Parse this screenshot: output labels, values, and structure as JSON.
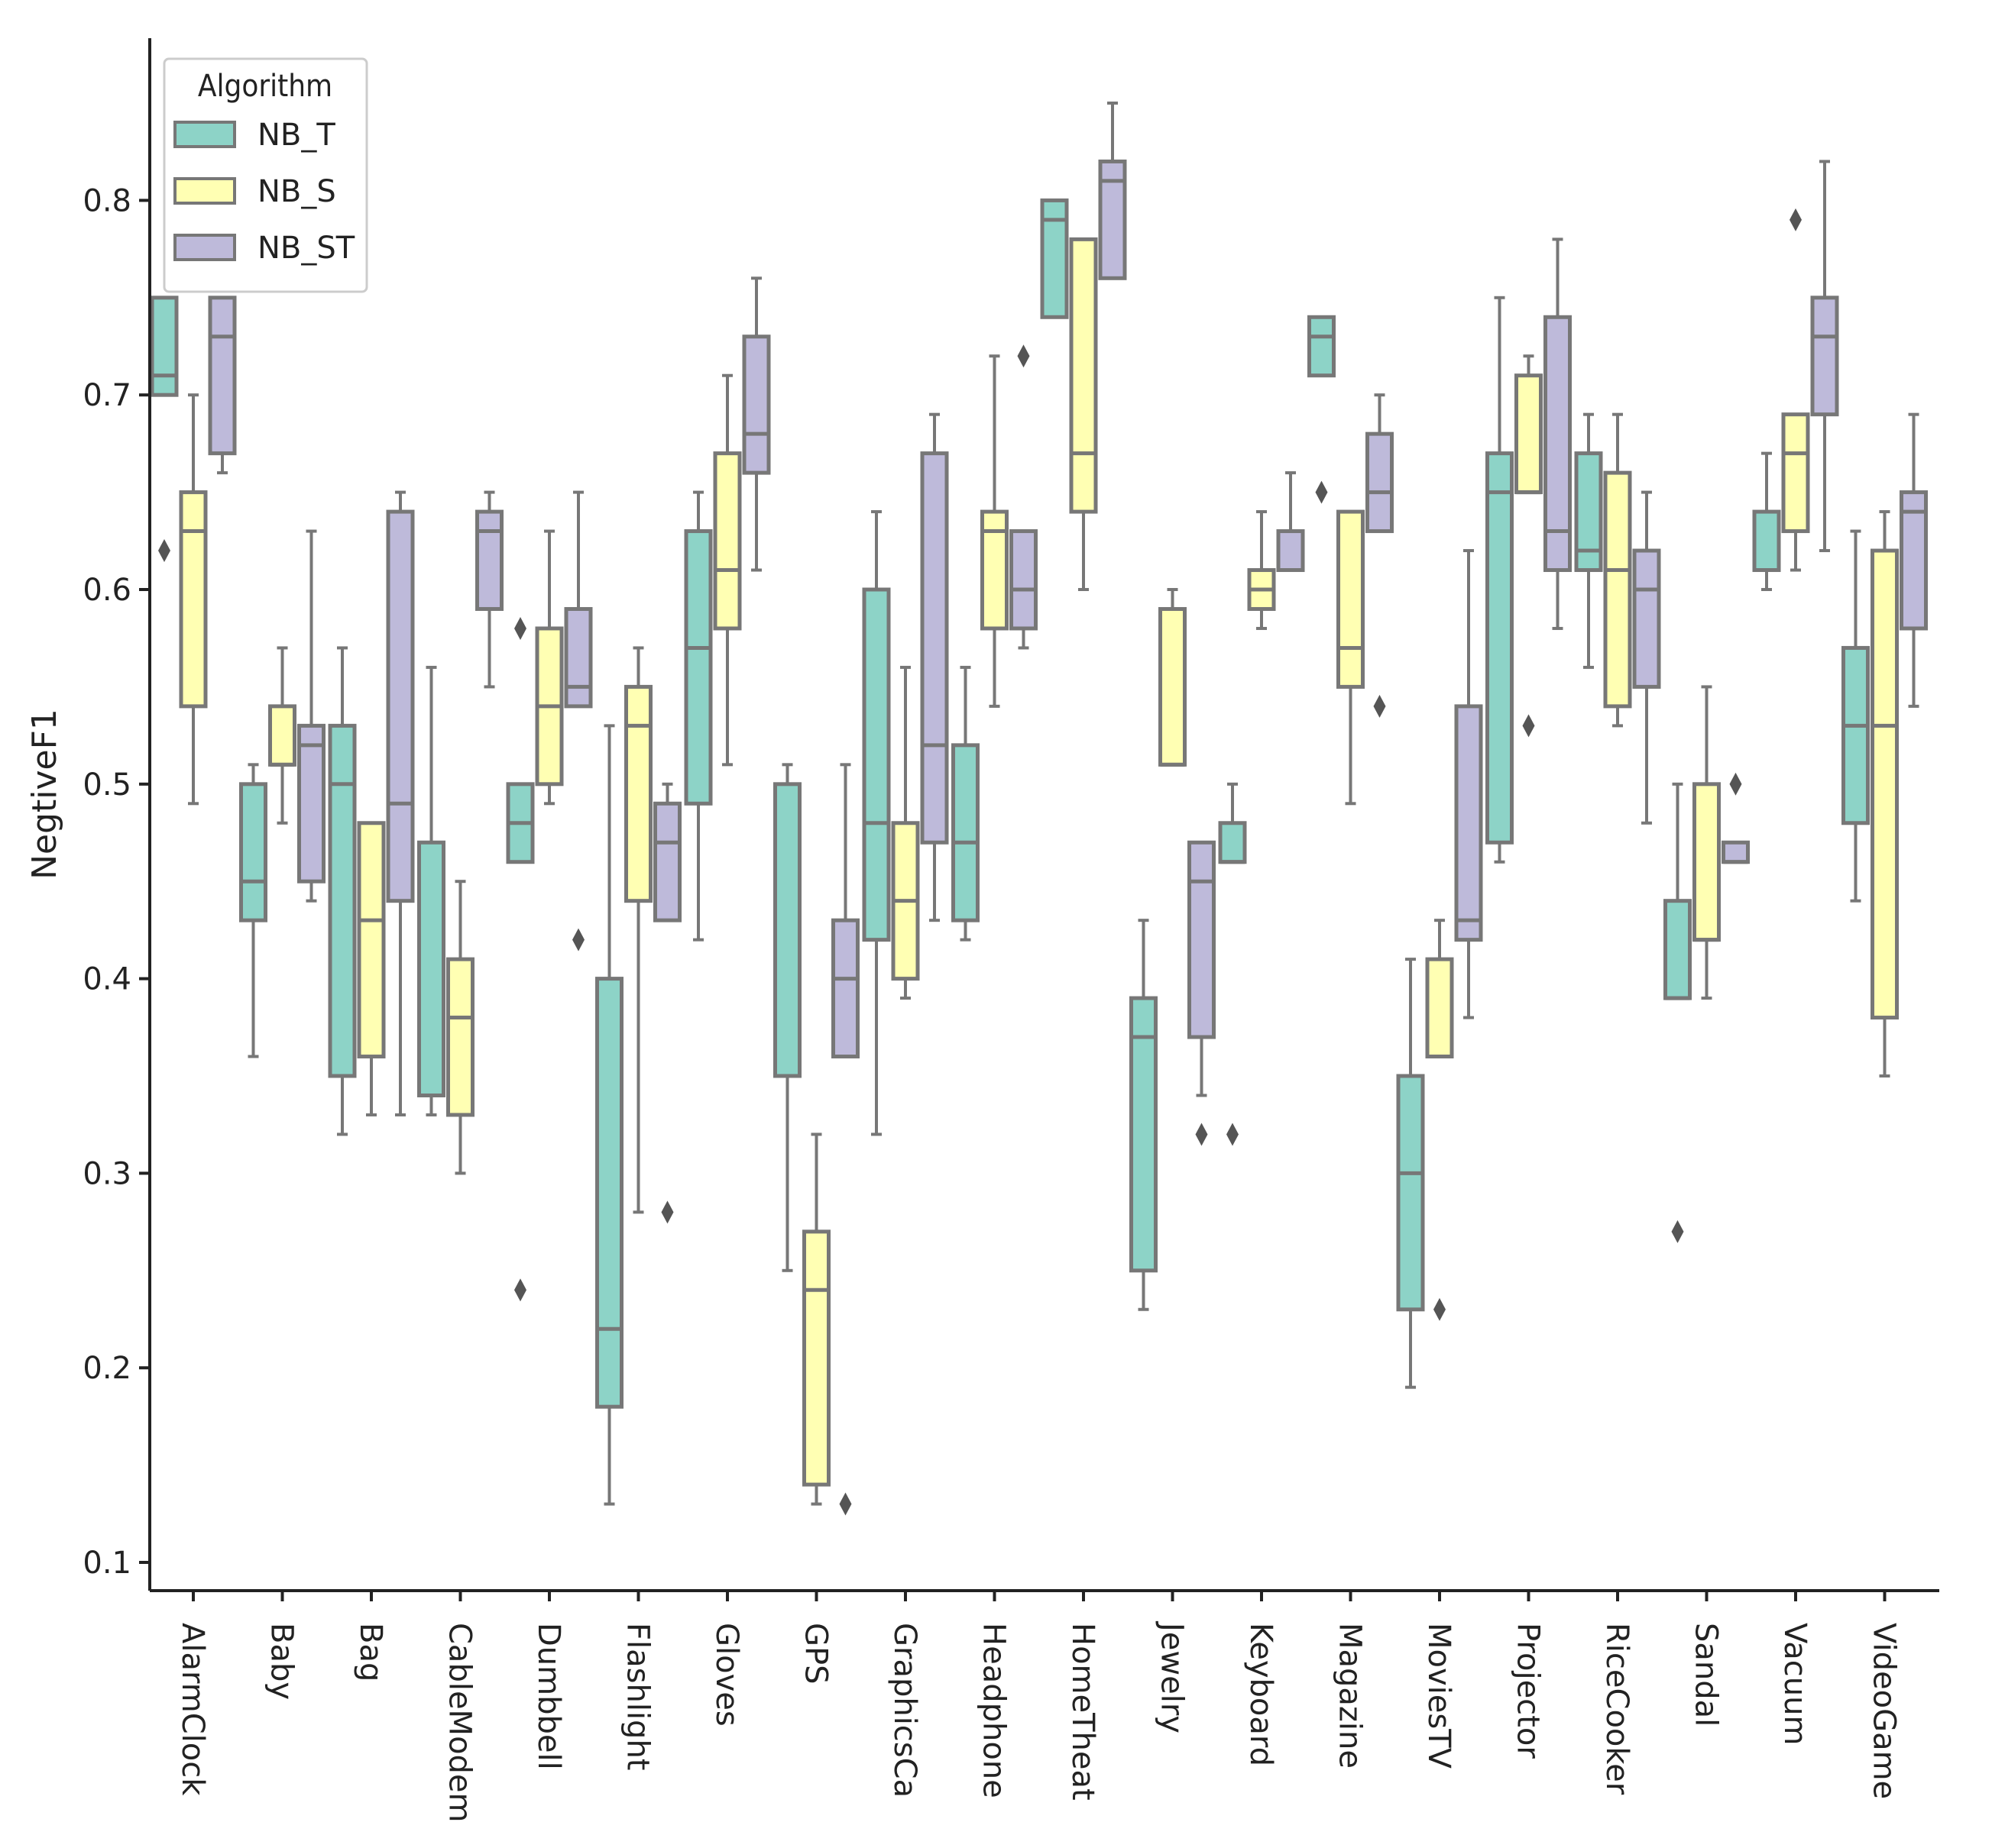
{
  "chart_data": {
    "type": "boxplot",
    "title": "",
    "xlabel": "",
    "ylabel": "NegtiveF1",
    "ylim": [
      0.095,
      0.895
    ],
    "yticks": [
      0.1,
      0.2,
      0.3,
      0.4,
      0.5,
      0.6,
      0.7,
      0.8
    ],
    "ytick_labels": [
      "0.1",
      "0.2",
      "0.3",
      "0.4",
      "0.5",
      "0.6",
      "0.7",
      "0.8"
    ],
    "categories": [
      "AlarmClock",
      "Baby",
      "Bag",
      "CableModem",
      "Dumbbell",
      "Flashlight",
      "Gloves",
      "GPS",
      "GraphicsCa",
      "Headphone",
      "HomeTheat",
      "Jewelry",
      "Keyboard",
      "Magazine",
      "MoviesTV",
      "Projector",
      "RiceCooker",
      "Sandal",
      "Vacuum",
      "VideoGame"
    ],
    "legend": {
      "title": "Algorithm",
      "position": "upper-left"
    },
    "series": [
      {
        "name": "NB_T",
        "color": "#8dd3c7",
        "boxes": [
          {
            "wl": 0.7,
            "q1": 0.7,
            "med": 0.71,
            "q3": 0.75,
            "wh": 0.75,
            "outliers": [
              0.62
            ]
          },
          {
            "wl": 0.36,
            "q1": 0.43,
            "med": 0.45,
            "q3": 0.5,
            "wh": 0.51,
            "outliers": []
          },
          {
            "wl": 0.32,
            "q1": 0.35,
            "med": 0.5,
            "q3": 0.53,
            "wh": 0.57,
            "outliers": []
          },
          {
            "wl": 0.33,
            "q1": 0.34,
            "med": 0.34,
            "q3": 0.47,
            "wh": 0.56,
            "outliers": []
          },
          {
            "wl": 0.46,
            "q1": 0.46,
            "med": 0.48,
            "q3": 0.5,
            "wh": 0.5,
            "outliers": [
              0.58,
              0.24
            ]
          },
          {
            "wl": 0.13,
            "q1": 0.18,
            "med": 0.22,
            "q3": 0.4,
            "wh": 0.53,
            "outliers": []
          },
          {
            "wl": 0.42,
            "q1": 0.49,
            "med": 0.57,
            "q3": 0.63,
            "wh": 0.65,
            "outliers": []
          },
          {
            "wl": 0.25,
            "q1": 0.35,
            "med": 0.35,
            "q3": 0.5,
            "wh": 0.51,
            "outliers": []
          },
          {
            "wl": 0.32,
            "q1": 0.42,
            "med": 0.48,
            "q3": 0.6,
            "wh": 0.64,
            "outliers": []
          },
          {
            "wl": 0.42,
            "q1": 0.43,
            "med": 0.47,
            "q3": 0.52,
            "wh": 0.56,
            "outliers": []
          },
          {
            "wl": 0.74,
            "q1": 0.74,
            "med": 0.79,
            "q3": 0.8,
            "wh": 0.8,
            "outliers": []
          },
          {
            "wl": 0.23,
            "q1": 0.25,
            "med": 0.37,
            "q3": 0.39,
            "wh": 0.43,
            "outliers": []
          },
          {
            "wl": 0.46,
            "q1": 0.46,
            "med": 0.46,
            "q3": 0.48,
            "wh": 0.5,
            "outliers": [
              0.32
            ]
          },
          {
            "wl": 0.71,
            "q1": 0.71,
            "med": 0.73,
            "q3": 0.74,
            "wh": 0.74,
            "outliers": [
              0.65
            ]
          },
          {
            "wl": 0.19,
            "q1": 0.23,
            "med": 0.3,
            "q3": 0.35,
            "wh": 0.41,
            "outliers": []
          },
          {
            "wl": 0.46,
            "q1": 0.47,
            "med": 0.65,
            "q3": 0.67,
            "wh": 0.75,
            "outliers": []
          },
          {
            "wl": 0.56,
            "q1": 0.61,
            "med": 0.62,
            "q3": 0.67,
            "wh": 0.69,
            "outliers": []
          },
          {
            "wl": 0.39,
            "q1": 0.39,
            "med": 0.39,
            "q3": 0.44,
            "wh": 0.5,
            "outliers": [
              0.27
            ]
          },
          {
            "wl": 0.6,
            "q1": 0.61,
            "med": 0.61,
            "q3": 0.64,
            "wh": 0.67,
            "outliers": []
          },
          {
            "wl": 0.44,
            "q1": 0.48,
            "med": 0.53,
            "q3": 0.57,
            "wh": 0.63,
            "outliers": []
          }
        ]
      },
      {
        "name": "NB_S",
        "color": "#ffffb3",
        "boxes": [
          {
            "wl": 0.49,
            "q1": 0.54,
            "med": 0.63,
            "q3": 0.65,
            "wh": 0.7,
            "outliers": []
          },
          {
            "wl": 0.48,
            "q1": 0.51,
            "med": 0.51,
            "q3": 0.54,
            "wh": 0.57,
            "outliers": []
          },
          {
            "wl": 0.33,
            "q1": 0.36,
            "med": 0.43,
            "q3": 0.48,
            "wh": 0.48,
            "outliers": []
          },
          {
            "wl": 0.3,
            "q1": 0.33,
            "med": 0.38,
            "q3": 0.41,
            "wh": 0.45,
            "outliers": []
          },
          {
            "wl": 0.49,
            "q1": 0.5,
            "med": 0.54,
            "q3": 0.58,
            "wh": 0.63,
            "outliers": []
          },
          {
            "wl": 0.28,
            "q1": 0.44,
            "med": 0.53,
            "q3": 0.55,
            "wh": 0.57,
            "outliers": []
          },
          {
            "wl": 0.51,
            "q1": 0.58,
            "med": 0.61,
            "q3": 0.67,
            "wh": 0.71,
            "outliers": []
          },
          {
            "wl": 0.13,
            "q1": 0.14,
            "med": 0.24,
            "q3": 0.27,
            "wh": 0.32,
            "outliers": []
          },
          {
            "wl": 0.39,
            "q1": 0.4,
            "med": 0.44,
            "q3": 0.48,
            "wh": 0.56,
            "outliers": []
          },
          {
            "wl": 0.54,
            "q1": 0.58,
            "med": 0.63,
            "q3": 0.64,
            "wh": 0.72,
            "outliers": []
          },
          {
            "wl": 0.6,
            "q1": 0.64,
            "med": 0.67,
            "q3": 0.78,
            "wh": 0.78,
            "outliers": []
          },
          {
            "wl": 0.51,
            "q1": 0.51,
            "med": 0.51,
            "q3": 0.59,
            "wh": 0.6,
            "outliers": []
          },
          {
            "wl": 0.58,
            "q1": 0.59,
            "med": 0.6,
            "q3": 0.61,
            "wh": 0.64,
            "outliers": []
          },
          {
            "wl": 0.49,
            "q1": 0.55,
            "med": 0.57,
            "q3": 0.64,
            "wh": 0.64,
            "outliers": []
          },
          {
            "wl": 0.36,
            "q1": 0.36,
            "med": 0.36,
            "q3": 0.41,
            "wh": 0.43,
            "outliers": [
              0.23
            ]
          },
          {
            "wl": 0.65,
            "q1": 0.65,
            "med": 0.65,
            "q3": 0.71,
            "wh": 0.72,
            "outliers": [
              0.53
            ]
          },
          {
            "wl": 0.53,
            "q1": 0.54,
            "med": 0.61,
            "q3": 0.66,
            "wh": 0.69,
            "outliers": []
          },
          {
            "wl": 0.39,
            "q1": 0.42,
            "med": 0.42,
            "q3": 0.5,
            "wh": 0.55,
            "outliers": []
          },
          {
            "wl": 0.61,
            "q1": 0.63,
            "med": 0.67,
            "q3": 0.69,
            "wh": 0.69,
            "outliers": [
              0.79
            ]
          },
          {
            "wl": 0.35,
            "q1": 0.38,
            "med": 0.53,
            "q3": 0.62,
            "wh": 0.64,
            "outliers": []
          }
        ]
      },
      {
        "name": "NB_ST",
        "color": "#bebada",
        "boxes": [
          {
            "wl": 0.66,
            "q1": 0.67,
            "med": 0.73,
            "q3": 0.75,
            "wh": 0.75,
            "outliers": []
          },
          {
            "wl": 0.44,
            "q1": 0.45,
            "med": 0.52,
            "q3": 0.53,
            "wh": 0.63,
            "outliers": []
          },
          {
            "wl": 0.33,
            "q1": 0.44,
            "med": 0.49,
            "q3": 0.64,
            "wh": 0.65,
            "outliers": []
          },
          {
            "wl": 0.55,
            "q1": 0.59,
            "med": 0.63,
            "q3": 0.64,
            "wh": 0.65,
            "outliers": []
          },
          {
            "wl": 0.54,
            "q1": 0.54,
            "med": 0.55,
            "q3": 0.59,
            "wh": 0.65,
            "outliers": [
              0.42
            ]
          },
          {
            "wl": 0.43,
            "q1": 0.43,
            "med": 0.47,
            "q3": 0.49,
            "wh": 0.5,
            "outliers": [
              0.28
            ]
          },
          {
            "wl": 0.61,
            "q1": 0.66,
            "med": 0.68,
            "q3": 0.73,
            "wh": 0.76,
            "outliers": []
          },
          {
            "wl": 0.36,
            "q1": 0.36,
            "med": 0.4,
            "q3": 0.43,
            "wh": 0.51,
            "outliers": [
              0.13
            ]
          },
          {
            "wl": 0.43,
            "q1": 0.47,
            "med": 0.52,
            "q3": 0.67,
            "wh": 0.69,
            "outliers": []
          },
          {
            "wl": 0.57,
            "q1": 0.58,
            "med": 0.6,
            "q3": 0.63,
            "wh": 0.63,
            "outliers": [
              0.72
            ]
          },
          {
            "wl": 0.76,
            "q1": 0.76,
            "med": 0.81,
            "q3": 0.82,
            "wh": 0.85,
            "outliers": []
          },
          {
            "wl": 0.34,
            "q1": 0.37,
            "med": 0.45,
            "q3": 0.47,
            "wh": 0.47,
            "outliers": [
              0.32
            ]
          },
          {
            "wl": 0.61,
            "q1": 0.61,
            "med": 0.61,
            "q3": 0.63,
            "wh": 0.66,
            "outliers": []
          },
          {
            "wl": 0.63,
            "q1": 0.63,
            "med": 0.65,
            "q3": 0.68,
            "wh": 0.7,
            "outliers": [
              0.54
            ]
          },
          {
            "wl": 0.38,
            "q1": 0.42,
            "med": 0.43,
            "q3": 0.54,
            "wh": 0.62,
            "outliers": []
          },
          {
            "wl": 0.58,
            "q1": 0.61,
            "med": 0.63,
            "q3": 0.74,
            "wh": 0.78,
            "outliers": []
          },
          {
            "wl": 0.48,
            "q1": 0.55,
            "med": 0.6,
            "q3": 0.62,
            "wh": 0.65,
            "outliers": []
          },
          {
            "wl": 0.46,
            "q1": 0.46,
            "med": 0.46,
            "q3": 0.47,
            "wh": 0.47,
            "outliers": [
              0.5
            ]
          },
          {
            "wl": 0.62,
            "q1": 0.69,
            "med": 0.73,
            "q3": 0.75,
            "wh": 0.82,
            "outliers": []
          },
          {
            "wl": 0.54,
            "q1": 0.58,
            "med": 0.64,
            "q3": 0.65,
            "wh": 0.69,
            "outliers": []
          }
        ]
      }
    ]
  }
}
